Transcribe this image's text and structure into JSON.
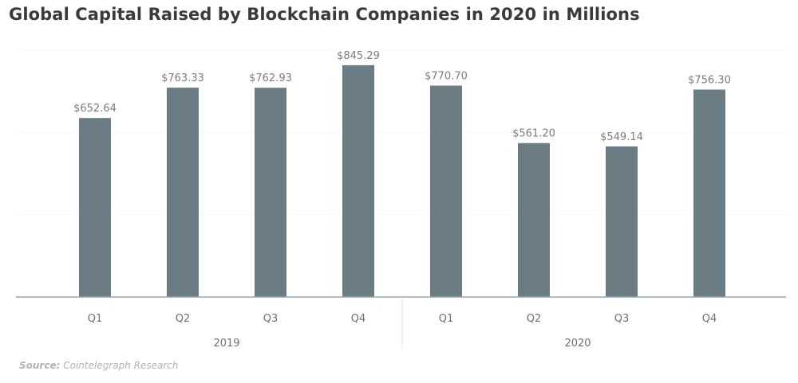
{
  "chart_data": {
    "type": "bar",
    "title": "Global Capital Raised by Blockchain Companies in 2020 in Millions",
    "xlabel": "",
    "ylabel": "",
    "ylim": [
      0,
      900
    ],
    "grid": true,
    "groups": [
      {
        "label": "2019",
        "categories": [
          "Q1",
          "Q2",
          "Q3",
          "Q4"
        ]
      },
      {
        "label": "2020",
        "categories": [
          "Q1",
          "Q2",
          "Q3",
          "Q4"
        ]
      }
    ],
    "categories": [
      "Q1",
      "Q2",
      "Q3",
      "Q4",
      "Q1",
      "Q2",
      "Q3",
      "Q4"
    ],
    "values": [
      652.64,
      763.33,
      762.93,
      845.29,
      770.7,
      561.2,
      549.14,
      756.3
    ],
    "data_labels": [
      "$652.64",
      "$763.33",
      "$762.93",
      "$845.29",
      "$770.70",
      "$561.20",
      "$549.14",
      "$756.30"
    ],
    "bar_color": "#6c7c85"
  },
  "source": {
    "label": "Source:",
    "text": "Cointelegraph Research"
  }
}
